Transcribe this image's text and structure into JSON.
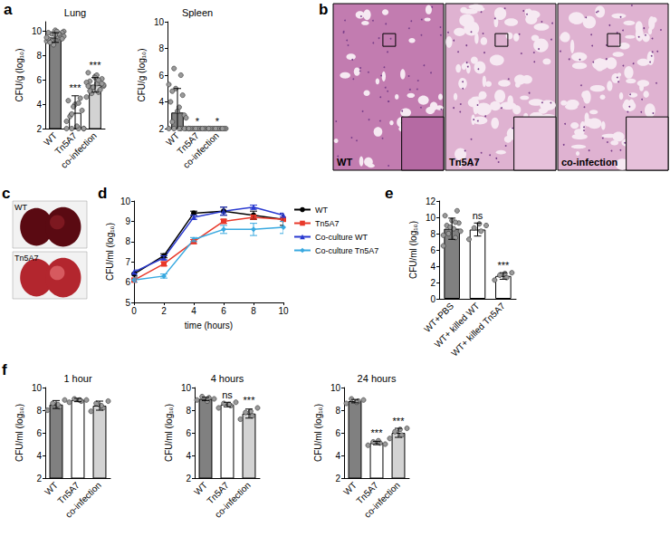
{
  "chart_data": [
    {
      "panel": "a",
      "type": "bar",
      "title": "Lung",
      "y_label": "CFU/g (log₁₀)",
      "categories": [
        "WT",
        "Tn5A7",
        "co-infection"
      ],
      "values": [
        9.5,
        3.3,
        5.6
      ],
      "errors": [
        0.4,
        1.4,
        0.6
      ],
      "points": [
        [
          9.2,
          9.5,
          9.8,
          10.0,
          9.6,
          9.3,
          9.9,
          10.1,
          9.4,
          9.7,
          8.9,
          9.5,
          9.8,
          9.2,
          9.6,
          10.0,
          9.1,
          9.4,
          9.7,
          9.9
        ],
        [
          2,
          2,
          2,
          2,
          2.2,
          3.0,
          3.5,
          4.0,
          4.3,
          4.5,
          3.8,
          2.6,
          4.1,
          3.2,
          2
        ],
        [
          4.6,
          5.0,
          5.3,
          5.5,
          5.7,
          5.9,
          6.1,
          6.3,
          6.6,
          5.2,
          5.4,
          5.8,
          6.0,
          4.9,
          5.6,
          6.4,
          5.1,
          5.7,
          6.2,
          5.5
        ]
      ],
      "annotations": [
        null,
        "***",
        "***"
      ],
      "colors": [
        "#808080",
        "#ffffff",
        "#d3d3d3"
      ],
      "ylim": [
        2,
        10.8
      ],
      "yticks": [
        2,
        4,
        6,
        8,
        10
      ],
      "grid": false
    },
    {
      "type": "bar",
      "title": "Spleen",
      "y_label": "CFU/g (log₁₀)",
      "categories": [
        "WT",
        "Tn5A7",
        "co-infection"
      ],
      "values": [
        3.2,
        2,
        2
      ],
      "errors": [
        1.8,
        0,
        0
      ],
      "points": [
        [
          2,
          2,
          2,
          2,
          2,
          2.5,
          3.0,
          3.3,
          4.0,
          4.5,
          5.0,
          5.3,
          6.0,
          6.5,
          2.8,
          3.6,
          4.8,
          2
        ],
        [
          2,
          2,
          2,
          2,
          2,
          2,
          2,
          2,
          2,
          2,
          2,
          2
        ],
        [
          2,
          2,
          2,
          2,
          2,
          2,
          2,
          2,
          2,
          2,
          2,
          2
        ]
      ],
      "annotations": [
        null,
        "*",
        "*"
      ],
      "colors": [
        "#808080",
        "#ffffff",
        "#d3d3d3"
      ],
      "ylim": [
        2,
        10
      ],
      "yticks": [
        2,
        4,
        6,
        8,
        10
      ],
      "grid": false
    },
    {
      "panel": "b",
      "type": "image",
      "labels": [
        "WT",
        "Tn5A7",
        "co-infection"
      ]
    },
    {
      "panel": "c",
      "type": "image",
      "labels": [
        "WT",
        "Tn5A7"
      ]
    },
    {
      "panel": "d",
      "type": "line",
      "x_label": "time (hours)",
      "y_label": "CFU/ml (log₁₀)",
      "x": [
        0,
        2,
        4,
        6,
        8,
        10
      ],
      "series": [
        {
          "name": "WT",
          "color": "#000000",
          "marker": "circle",
          "line_style": "solid",
          "values": [
            6.4,
            7.3,
            9.4,
            9.5,
            9.3,
            9.1
          ],
          "errors": [
            0.1,
            0.1,
            0.1,
            0.2,
            0.2,
            0.3
          ]
        },
        {
          "name": "Tn5A7",
          "color": "#e8392a",
          "marker": "square",
          "line_style": "solid",
          "values": [
            6.1,
            6.9,
            8.0,
            9.0,
            9.2,
            9.1
          ],
          "errors": [
            0.1,
            0.1,
            0.1,
            0.1,
            0.1,
            0.1
          ]
        },
        {
          "name": "Co-culture WT",
          "color": "#2a3ad0",
          "marker": "triangle",
          "line_style": "solid",
          "values": [
            6.5,
            7.2,
            9.2,
            9.5,
            9.7,
            9.3
          ],
          "errors": [
            0.1,
            0.1,
            0.1,
            0.2,
            0.1,
            0.1
          ]
        },
        {
          "name": "Co-culture Tn5A7",
          "color": "#39a9e0",
          "marker": "diamond",
          "line_style": "solid",
          "values": [
            6.1,
            6.3,
            8.1,
            8.6,
            8.6,
            8.7
          ],
          "errors": [
            0.1,
            0.1,
            0.1,
            0.2,
            0.3,
            0.3
          ]
        }
      ],
      "xlim": [
        0,
        10
      ],
      "xticks": [
        0,
        2,
        4,
        6,
        8,
        10
      ],
      "ylim": [
        5,
        10
      ],
      "yticks": [
        5,
        6,
        7,
        8,
        9,
        10
      ],
      "legend": "right",
      "grid": false
    },
    {
      "panel": "e",
      "type": "bar",
      "y_label": "CFU/ml (log₁₀)",
      "categories": [
        "WT+PBS",
        "WT+ killed WT",
        "WT+ killed Tn5A7"
      ],
      "values": [
        8.6,
        8.5,
        2.8
      ],
      "errors": [
        1.3,
        0.8,
        0.4
      ],
      "points": [
        [
          6.5,
          7.5,
          8.0,
          8.3,
          8.6,
          9.0,
          9.3,
          9.6,
          10.2,
          10.8,
          8.8,
          7.8,
          9.4
        ],
        [
          7.3,
          8.3,
          8.7,
          9.0,
          9.2
        ],
        [
          2.3,
          2.6,
          2.9,
          3.2,
          3.1
        ]
      ],
      "annotations": [
        null,
        "ns",
        "***"
      ],
      "colors": [
        "#808080",
        "#ffffff",
        "#ffffff"
      ],
      "ylim": [
        0,
        12
      ],
      "yticks": [
        0,
        2,
        4,
        6,
        8,
        10,
        12
      ],
      "grid": false
    },
    {
      "panel": "f",
      "type": "bar",
      "title": "1 hour",
      "y_label": "CFU/ml (log₁₀)",
      "categories": [
        "WT",
        "Tn5A7",
        "co-infection"
      ],
      "values": [
        8.5,
        8.9,
        8.4
      ],
      "errors": [
        0.35,
        0.15,
        0.4
      ],
      "points": [
        [
          8.0,
          8.3,
          8.6,
          8.9,
          8.5
        ],
        [
          8.7,
          8.8,
          9.0,
          8.9,
          8.9
        ],
        [
          7.9,
          8.2,
          8.6,
          8.8,
          8.4
        ]
      ],
      "annotations": [
        null,
        null,
        null
      ],
      "colors": [
        "#808080",
        "#ffffff",
        "#d3d3d3"
      ],
      "ylim": [
        2,
        10
      ],
      "yticks": [
        2,
        4,
        6,
        8,
        10
      ],
      "grid": false
    },
    {
      "type": "bar",
      "title": "4 hours",
      "y_label": "CFU/ml (log₁₀)",
      "categories": [
        "WT",
        "Tn5A7",
        "co-infection"
      ],
      "values": [
        9.0,
        8.5,
        7.7
      ],
      "errors": [
        0.15,
        0.2,
        0.4
      ],
      "points": [
        [
          8.9,
          9.1,
          9.2,
          9.0,
          8.8
        ],
        [
          8.2,
          8.4,
          8.6,
          8.7,
          8.5
        ],
        [
          7.2,
          7.5,
          7.8,
          8.2,
          7.9
        ]
      ],
      "annotations": [
        null,
        "ns",
        "***"
      ],
      "colors": [
        "#808080",
        "#ffffff",
        "#d3d3d3"
      ],
      "ylim": [
        2,
        10
      ],
      "yticks": [
        2,
        4,
        6,
        8,
        10
      ],
      "grid": false
    },
    {
      "type": "bar",
      "title": "24 hours",
      "y_label": "CFU/ml (log₁₀)",
      "categories": [
        "WT",
        "Tn5A7",
        "co-infection"
      ],
      "values": [
        8.8,
        5.1,
        6.0
      ],
      "errors": [
        0.15,
        0.15,
        0.4
      ],
      "points": [
        [
          8.6,
          8.8,
          9.0,
          8.9,
          8.7
        ],
        [
          4.9,
          5.1,
          5.2,
          5.0,
          5.3
        ],
        [
          5.5,
          5.8,
          6.1,
          6.4,
          6.3
        ]
      ],
      "annotations": [
        null,
        "***",
        "***"
      ],
      "colors": [
        "#808080",
        "#ffffff",
        "#d3d3d3"
      ],
      "ylim": [
        2,
        10
      ],
      "yticks": [
        2,
        4,
        6,
        8,
        10
      ],
      "grid": false
    }
  ]
}
